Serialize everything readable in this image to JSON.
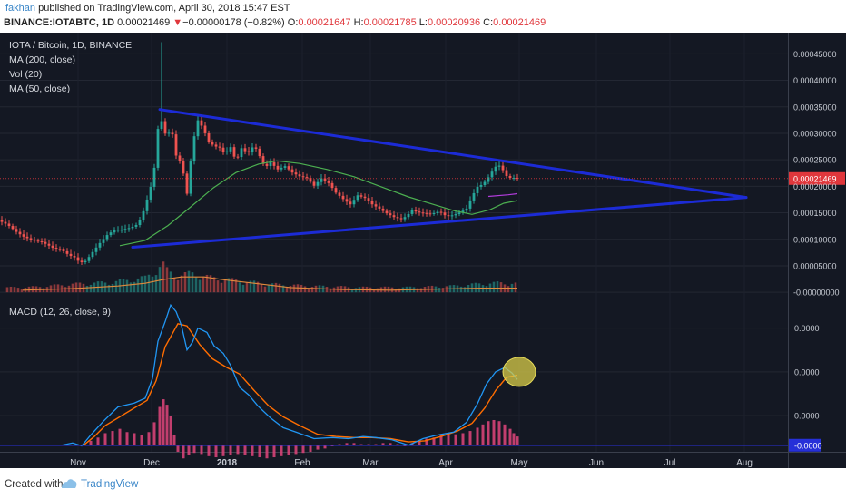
{
  "header": {
    "author": "fakhan",
    "published": "published on TradingView.com, April 30, 2018 15:47 EST",
    "symbol": "BINANCE:IOTABTC, 1D",
    "last": "0.00021469",
    "arrow": "▼",
    "change": "−0.00000178 (−0.82%)",
    "o_label": "O:",
    "o": "0.00021647",
    "h_label": "H:",
    "h": "0.00021785",
    "l_label": "L:",
    "l": "0.00020936",
    "c_label": "C:",
    "c": "0.00021469"
  },
  "legend": {
    "pair": "IOTA / Bitcoin, 1D, BINANCE",
    "ma200": "MA (200, close)",
    "vol": "Vol (20)",
    "ma50": "MA (50, close)",
    "macd": "MACD (12, 26, close, 9)"
  },
  "footer": {
    "created": "Created with",
    "brand": "TradingView"
  },
  "colors": {
    "background": "#141823",
    "up": "#26a69a",
    "down": "#ef5350",
    "trendline": "#1c2bd6",
    "ma50": "#4caf50",
    "ma200": "#b23cdc",
    "macd": "#2196f3",
    "signal": "#ff6d00",
    "histogram": "#e0457b",
    "highlight": "#d8cc4a",
    "price_badge": "#e0373c"
  },
  "chart_data": {
    "type": "candlestick",
    "x_labels": [
      "Nov",
      "Dec",
      "2018",
      "Feb",
      "Mar",
      "Apr",
      "May",
      "Jun",
      "Jul",
      "Aug"
    ],
    "price_axis": {
      "ticks": [
        "0.00045000",
        "0.00040000",
        "0.00035000",
        "0.00030000",
        "0.00025000",
        "0.00020000",
        "0.00015000",
        "0.00010000",
        "0.00005000",
        "-0.00000000"
      ],
      "tick_values": [
        0.00045,
        0.0004,
        0.00035,
        0.0003,
        0.00025,
        0.0002,
        0.00015,
        0.0001,
        5e-05,
        0.0
      ],
      "range": [
        -1e-05,
        0.00049
      ],
      "last_price": 0.00021469,
      "last_price_label": "0.00021469"
    },
    "price_path": [
      [
        0,
        0.000136
      ],
      [
        10,
        0.000128
      ],
      [
        20,
        0.000114
      ],
      [
        28,
        0.000105
      ],
      [
        38,
        9.8e-05
      ],
      [
        48,
        9.5e-05
      ],
      [
        56,
        8.8e-05
      ],
      [
        62,
        8.2e-05
      ],
      [
        70,
        8e-05
      ],
      [
        78,
        7e-05
      ],
      [
        84,
        6.6e-05
      ],
      [
        89,
        5.8e-05
      ],
      [
        94,
        5.6e-05
      ],
      [
        98,
        6.2e-05
      ],
      [
        104,
        7.6e-05
      ],
      [
        112,
        9.3e-05
      ],
      [
        120,
        0.000108
      ],
      [
        128,
        0.000118
      ],
      [
        136,
        0.000118
      ],
      [
        146,
        0.000122
      ],
      [
        152,
        0.000127
      ],
      [
        158,
        0.000142
      ],
      [
        164,
        0.000175
      ],
      [
        169,
        0.000205
      ],
      [
        174,
        0.000255
      ],
      [
        177,
        0.000335
      ],
      [
        182,
        0.000315
      ],
      [
        186,
        0.000284
      ],
      [
        190,
        0.000318
      ],
      [
        196,
        0.000258
      ],
      [
        202,
        0.000243
      ],
      [
        208,
        0.000186
      ],
      [
        213,
        0.000262
      ],
      [
        219,
        0.000327
      ],
      [
        225,
        0.000312
      ],
      [
        232,
        0.000284
      ],
      [
        238,
        0.000276
      ],
      [
        244,
        0.000273
      ],
      [
        250,
        0.000262
      ],
      [
        256,
        0.000274
      ],
      [
        262,
        0.000247
      ],
      [
        268,
        0.000272
      ],
      [
        275,
        0.000262
      ],
      [
        282,
        0.000278
      ],
      [
        288,
        0.000257
      ],
      [
        294,
        0.000235
      ],
      [
        300,
        0.000245
      ],
      [
        308,
        0.000232
      ],
      [
        316,
        0.000238
      ],
      [
        324,
        0.000226
      ],
      [
        332,
        0.000219
      ],
      [
        340,
        0.000216
      ],
      [
        348,
        0.000201
      ],
      [
        356,
        0.000215
      ],
      [
        364,
        0.000206
      ],
      [
        372,
        0.000188
      ],
      [
        380,
        0.000176
      ],
      [
        388,
        0.000166
      ],
      [
        396,
        0.000183
      ],
      [
        404,
        0.000178
      ],
      [
        412,
        0.000166
      ],
      [
        420,
        0.000158
      ],
      [
        428,
        0.000149
      ],
      [
        436,
        0.000142
      ],
      [
        444,
        0.000138
      ],
      [
        450,
        0.000144
      ],
      [
        456,
        0.000155
      ],
      [
        462,
        0.000151
      ],
      [
        470,
        0.000149
      ],
      [
        478,
        0.000148
      ],
      [
        486,
        0.000153
      ],
      [
        494,
        0.000143
      ],
      [
        502,
        0.000146
      ],
      [
        510,
        0.000152
      ],
      [
        516,
        0.000158
      ],
      [
        522,
        0.000181
      ],
      [
        528,
        0.000199
      ],
      [
        534,
        0.000204
      ],
      [
        540,
        0.000217
      ],
      [
        546,
        0.000233
      ],
      [
        550,
        0.000241
      ],
      [
        554,
        0.000237
      ],
      [
        558,
        0.000224
      ],
      [
        562,
        0.000215
      ],
      [
        566,
        0.000217
      ],
      [
        570,
        0.000215
      ]
    ],
    "volume": [
      [
        0,
        1e-05
      ],
      [
        40,
        1.2e-05
      ],
      [
        80,
        1.8e-05
      ],
      [
        120,
        2.2e-05
      ],
      [
        160,
        3.2e-05
      ],
      [
        176,
        5.6e-05
      ],
      [
        184,
        4.8e-05
      ],
      [
        196,
        3.6e-05
      ],
      [
        212,
        4.2e-05
      ],
      [
        230,
        3.3e-05
      ],
      [
        260,
        2.6e-05
      ],
      [
        300,
        1.8e-05
      ],
      [
        340,
        1.4e-05
      ],
      [
        400,
        1.1e-05
      ],
      [
        450,
        1.1e-05
      ],
      [
        500,
        1.4e-05
      ],
      [
        530,
        1.9e-05
      ],
      [
        550,
        2.1e-05
      ],
      [
        570,
        1.9e-05
      ]
    ],
    "volume_ma": [
      [
        25,
        4e-06
      ],
      [
        80,
        7e-06
      ],
      [
        130,
        1.2e-05
      ],
      [
        160,
        1.7e-05
      ],
      [
        180,
        2.4e-05
      ],
      [
        200,
        2.9e-05
      ],
      [
        225,
        2.9e-05
      ],
      [
        245,
        2.4e-05
      ],
      [
        280,
        1.7e-05
      ],
      [
        320,
        9e-06
      ],
      [
        380,
        5e-06
      ],
      [
        430,
        4e-06
      ],
      [
        480,
        6e-06
      ],
      [
        530,
        8e-06
      ],
      [
        570,
        8e-06
      ]
    ],
    "ma50": [
      [
        132,
        8.8e-05
      ],
      [
        160,
        9.8e-05
      ],
      [
        185,
        0.000126
      ],
      [
        210,
        0.000161
      ],
      [
        235,
        0.000197
      ],
      [
        260,
        0.000226
      ],
      [
        285,
        0.000242
      ],
      [
        305,
        0.000248
      ],
      [
        330,
        0.000243
      ],
      [
        360,
        0.000232
      ],
      [
        390,
        0.000218
      ],
      [
        420,
        0.000199
      ],
      [
        450,
        0.00018
      ],
      [
        475,
        0.000167
      ],
      [
        500,
        0.000154
      ],
      [
        520,
        0.000147
      ],
      [
        540,
        0.000156
      ],
      [
        555,
        0.000168
      ],
      [
        570,
        0.000173
      ]
    ],
    "ma200": [
      [
        538,
        0.000181
      ],
      [
        560,
        0.000184
      ],
      [
        570,
        0.000186
      ]
    ],
    "trendlines": [
      {
        "name": "upper",
        "from": [
          176,
          0.000345
        ],
        "to": [
          822,
          0.000179
        ]
      },
      {
        "name": "lower",
        "from": [
          146,
          8.5e-05
        ],
        "to": [
          822,
          0.000179
        ]
      }
    ],
    "macd_axis": {
      "ticks": [
        "0.0000",
        "0.0000",
        "0.0000",
        "-0.0000"
      ],
      "tick_values": [
        4.5e-05,
        2.5e-05,
        5e-06,
        -8.5e-06
      ],
      "range": [
        -1.15e-05,
        5.85e-05
      ],
      "zero_line": -8.5e-06
    },
    "macd": [
      [
        68,
        -8.5e-06
      ],
      [
        80,
        -7.5e-06
      ],
      [
        90,
        -8.8e-06
      ],
      [
        100,
        -3.8e-06
      ],
      [
        114,
        2.5e-06
      ],
      [
        130,
        9e-06
      ],
      [
        148,
        1.08e-05
      ],
      [
        160,
        1.3e-05
      ],
      [
        168,
        2.2e-05
      ],
      [
        174,
        3.9e-05
      ],
      [
        182,
        4.8e-05
      ],
      [
        188,
        5.55e-05
      ],
      [
        194,
        5.25e-05
      ],
      [
        200,
        4.6e-05
      ],
      [
        206,
        3.5e-05
      ],
      [
        212,
        3.85e-05
      ],
      [
        218,
        4.5e-05
      ],
      [
        228,
        4.3e-05
      ],
      [
        236,
        3.68e-05
      ],
      [
        246,
        3.35e-05
      ],
      [
        254,
        2.8e-05
      ],
      [
        264,
        1.8e-05
      ],
      [
        274,
        1.45e-05
      ],
      [
        284,
        9.5e-06
      ],
      [
        298,
        4e-06
      ],
      [
        312,
        -5e-07
      ],
      [
        326,
        -2.5e-06
      ],
      [
        346,
        -5.5e-06
      ],
      [
        366,
        -5e-06
      ],
      [
        384,
        -5.5e-06
      ],
      [
        400,
        -4.5e-06
      ],
      [
        414,
        -5e-06
      ],
      [
        432,
        -6e-06
      ],
      [
        450,
        -8.5e-06
      ],
      [
        466,
        -5.5e-06
      ],
      [
        480,
        -4e-06
      ],
      [
        500,
        -2.5e-06
      ],
      [
        514,
        2e-06
      ],
      [
        526,
        1.05e-05
      ],
      [
        536,
        1.95e-05
      ],
      [
        546,
        2.5e-05
      ],
      [
        556,
        2.7e-05
      ],
      [
        564,
        2.45e-05
      ],
      [
        570,
        2.15e-05
      ]
    ],
    "signal": [
      [
        92,
        -8.5e-06
      ],
      [
        104,
        -4.5e-06
      ],
      [
        116,
        5e-07
      ],
      [
        132,
        4.5e-06
      ],
      [
        148,
        8.5e-06
      ],
      [
        162,
        1.2e-05
      ],
      [
        172,
        2.1e-05
      ],
      [
        182,
        3.65e-05
      ],
      [
        196,
        4.7e-05
      ],
      [
        206,
        4.6e-05
      ],
      [
        220,
        3.75e-05
      ],
      [
        234,
        3.1e-05
      ],
      [
        250,
        2.7e-05
      ],
      [
        264,
        2.4e-05
      ],
      [
        280,
        1.65e-05
      ],
      [
        296,
        9.5e-06
      ],
      [
        312,
        4.5e-06
      ],
      [
        330,
        5e-07
      ],
      [
        350,
        -3.5e-06
      ],
      [
        370,
        -4.5e-06
      ],
      [
        390,
        -5e-06
      ],
      [
        410,
        -5e-06
      ],
      [
        430,
        -5.5e-06
      ],
      [
        450,
        -7e-06
      ],
      [
        468,
        -6.5e-06
      ],
      [
        486,
        -4.5e-06
      ],
      [
        504,
        -2e-06
      ],
      [
        520,
        1.5e-06
      ],
      [
        534,
        8.5e-06
      ],
      [
        546,
        1.65e-05
      ],
      [
        558,
        2.25e-05
      ],
      [
        570,
        2.35e-05
      ]
    ],
    "histogram": [
      [
        100,
        2e-06
      ],
      [
        108,
        3.5e-06
      ],
      [
        116,
        5.5e-06
      ],
      [
        124,
        6.5e-06
      ],
      [
        132,
        7.5e-06
      ],
      [
        140,
        6e-06
      ],
      [
        148,
        5.5e-06
      ],
      [
        156,
        4.5e-06
      ],
      [
        164,
        6e-06
      ],
      [
        170,
        1.05e-05
      ],
      [
        176,
        1.75e-05
      ],
      [
        180,
        2.1e-05
      ],
      [
        184,
        1.85e-05
      ],
      [
        188,
        1.35e-05
      ],
      [
        192,
        4.5e-06
      ],
      [
        196,
        -3e-06
      ],
      [
        202,
        -6e-06
      ],
      [
        208,
        -4.5e-06
      ],
      [
        214,
        -3.5e-06
      ],
      [
        222,
        -4e-06
      ],
      [
        230,
        -5e-06
      ],
      [
        238,
        -5.5e-06
      ],
      [
        246,
        -5e-06
      ],
      [
        254,
        -4.5e-06
      ],
      [
        262,
        -4e-06
      ],
      [
        270,
        -4.5e-06
      ],
      [
        278,
        -5e-06
      ],
      [
        286,
        -5.5e-06
      ],
      [
        294,
        -6e-06
      ],
      [
        302,
        -5.5e-06
      ],
      [
        310,
        -5e-06
      ],
      [
        318,
        -4.5e-06
      ],
      [
        326,
        -4e-06
      ],
      [
        334,
        -3.5e-06
      ],
      [
        342,
        -3e-06
      ],
      [
        350,
        -2e-06
      ],
      [
        358,
        -1.5e-06
      ],
      [
        366,
        -5e-07
      ],
      [
        374,
        5e-07
      ],
      [
        382,
        1e-06
      ],
      [
        390,
        1e-06
      ],
      [
        398,
        5e-07
      ],
      [
        406,
        5e-07
      ],
      [
        414,
        5e-07
      ],
      [
        422,
        1e-06
      ],
      [
        430,
        1e-06
      ],
      [
        438,
        5e-07
      ],
      [
        446,
        -5e-07
      ],
      [
        454,
        1e-06
      ],
      [
        462,
        2e-06
      ],
      [
        470,
        3e-06
      ],
      [
        478,
        3.5e-06
      ],
      [
        486,
        4.5e-06
      ],
      [
        494,
        5e-06
      ],
      [
        502,
        5e-06
      ],
      [
        510,
        5.5e-06
      ],
      [
        518,
        6.5e-06
      ],
      [
        526,
        8e-06
      ],
      [
        532,
        9.5e-06
      ],
      [
        538,
        1.1e-05
      ],
      [
        544,
        1.15e-05
      ],
      [
        550,
        1.1e-05
      ],
      [
        556,
        9.5e-06
      ],
      [
        562,
        7.5e-06
      ],
      [
        566,
        5.5e-06
      ],
      [
        570,
        4e-06
      ]
    ]
  }
}
